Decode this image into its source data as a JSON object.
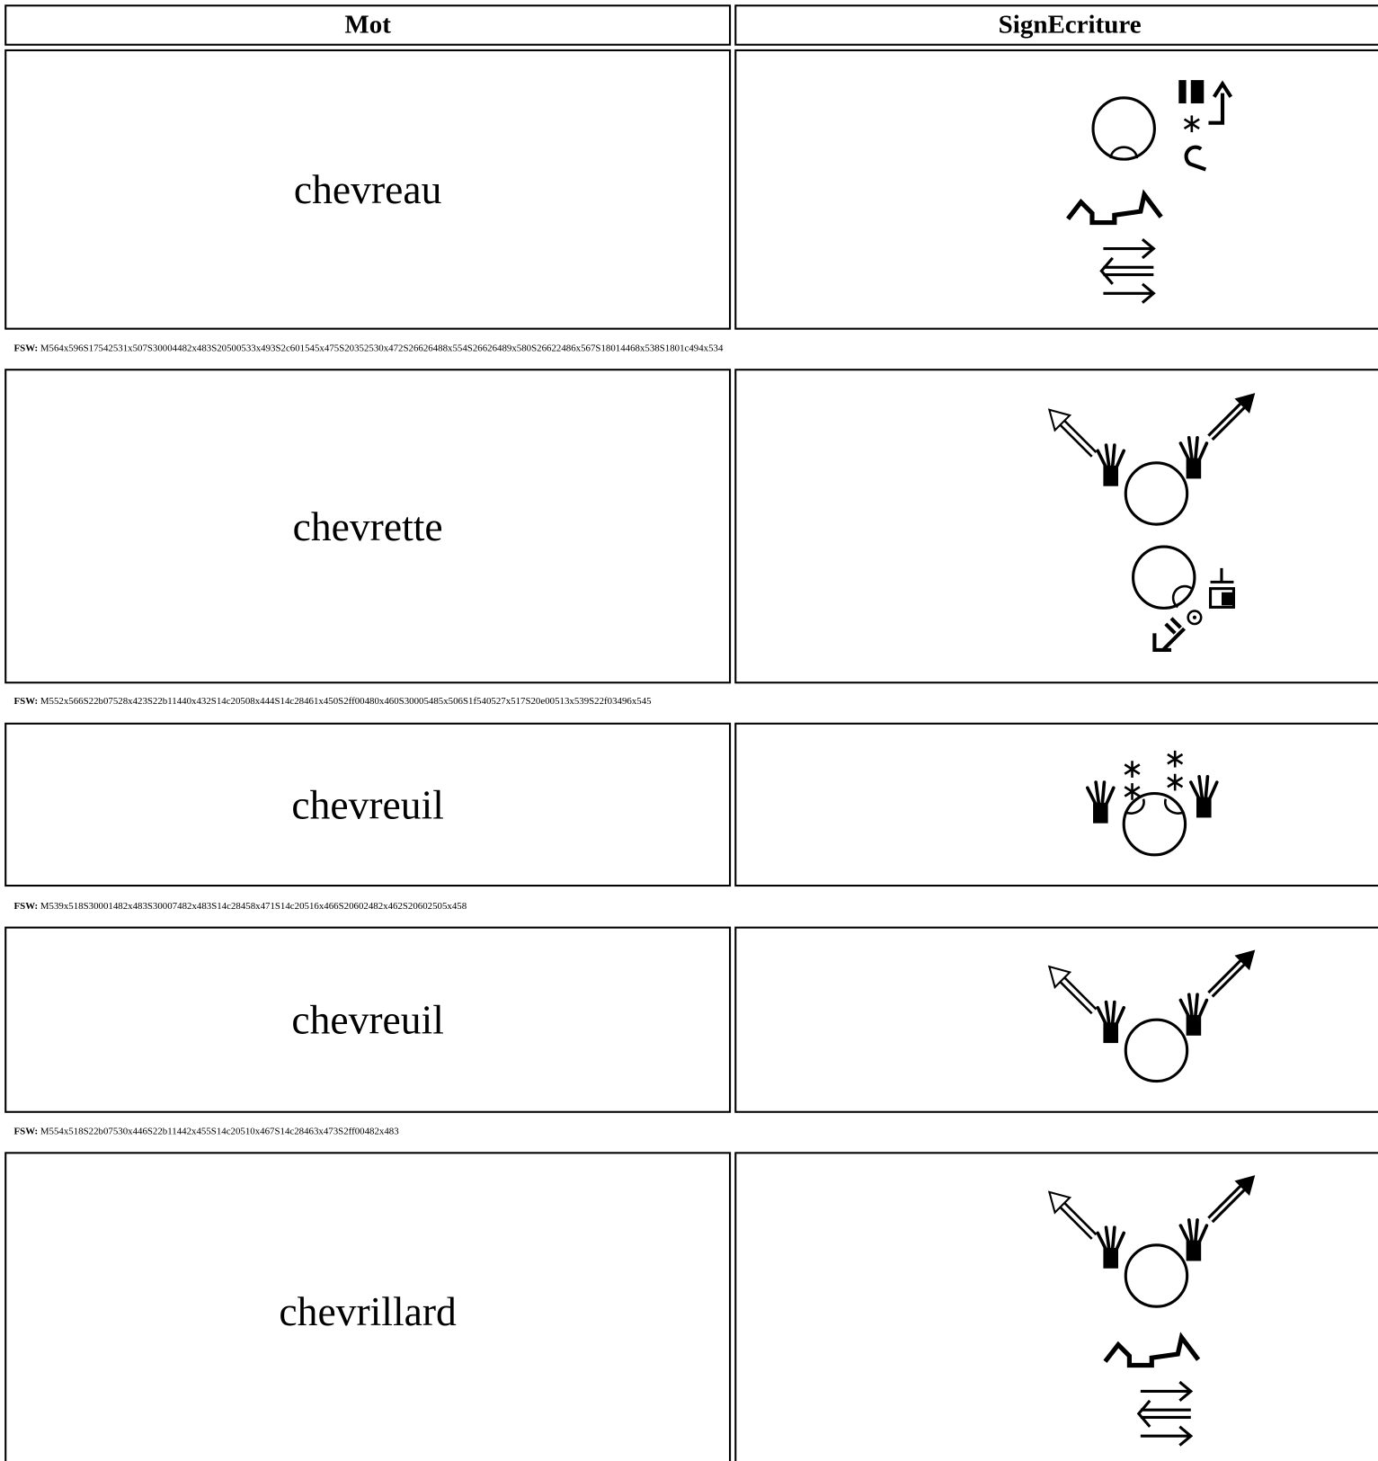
{
  "header": {
    "columns": [
      "Mot",
      "SignEcriture"
    ]
  },
  "fsw_label": "FSW:",
  "rows": [
    {
      "word": "chevreau",
      "fsw": "M564x596S17542531x507S30004482x483S20500533x493S2c601545x475S20352530x472S26626488x554S26626489x580S26622486x567S18014468x538S1801c494x534"
    },
    {
      "word": "chevrette",
      "fsw": "M552x566S22b07528x423S22b11440x432S14c20508x444S14c28461x450S2ff00480x460S30005485x506S1f540527x517S20e00513x539S22f03496x545"
    },
    {
      "word": "chevreuil",
      "fsw": "M539x518S30001482x483S30007482x483S14c28458x471S14c20516x466S20602482x462S20602505x458"
    },
    {
      "word": "chevreuil",
      "fsw": "M554x518S22b07530x446S22b11442x455S14c20510x467S14c28463x473S2ff00482x483"
    },
    {
      "word": "chevrillard"
    }
  ]
}
